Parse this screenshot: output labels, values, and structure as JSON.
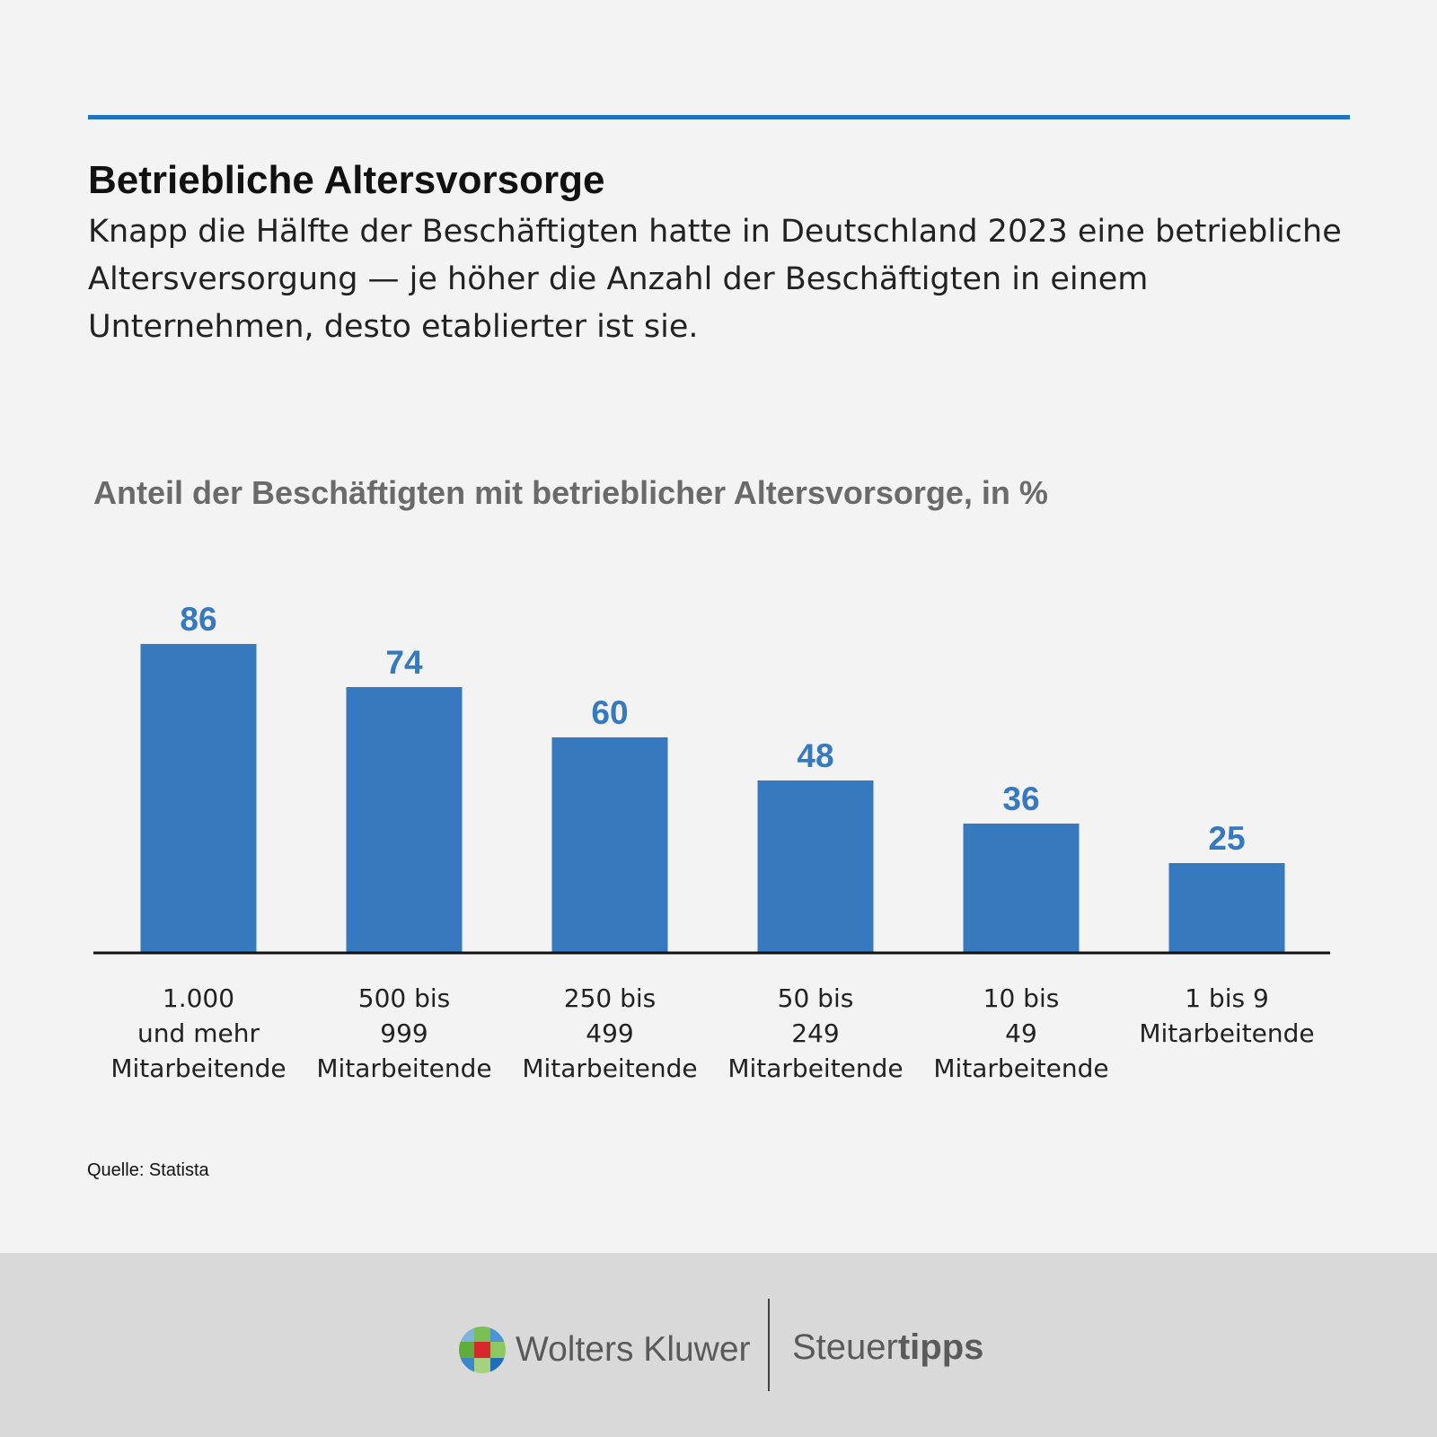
{
  "header": {
    "title": "Betriebliche Altersvorsorge",
    "subtitle": "Knapp die Hälfte der Beschäftigten hatte in Deutschland 2023 eine betriebliche Altersversorgung — je höher die Anzahl der Beschäftigten in einem Unternehmen, desto etablierter ist sie."
  },
  "chart_data": {
    "type": "bar",
    "title": "Anteil der Beschäftigten mit betrieblicher Altersvorsorge, in %",
    "categories": [
      [
        "1.000",
        "und mehr",
        "Mitarbeitende"
      ],
      [
        "500 bis",
        "999",
        "Mitarbeitende"
      ],
      [
        "250 bis",
        "499",
        "Mitarbeitende"
      ],
      [
        "50 bis",
        "249",
        "Mitarbeitende"
      ],
      [
        "10 bis",
        "49",
        "Mitarbeitende"
      ],
      [
        "1 bis 9",
        "Mitarbeitende"
      ]
    ],
    "values": [
      86,
      74,
      60,
      48,
      36,
      25
    ],
    "data_labels": [
      "86",
      "74",
      "60",
      "48",
      "36",
      "25"
    ],
    "ylim": [
      0,
      100
    ],
    "grid": false,
    "bar_color": "#3679be",
    "label_color": "#3679be"
  },
  "source": "Quelle: Statista",
  "footer": {
    "publisher": "Wolters Kluwer",
    "brand_light": "Steuer",
    "brand_bold": "tipps"
  },
  "colors": {
    "accent": "#1f73bf",
    "footer_bg": "#d9d9d9",
    "background": "#f3f3f3"
  }
}
